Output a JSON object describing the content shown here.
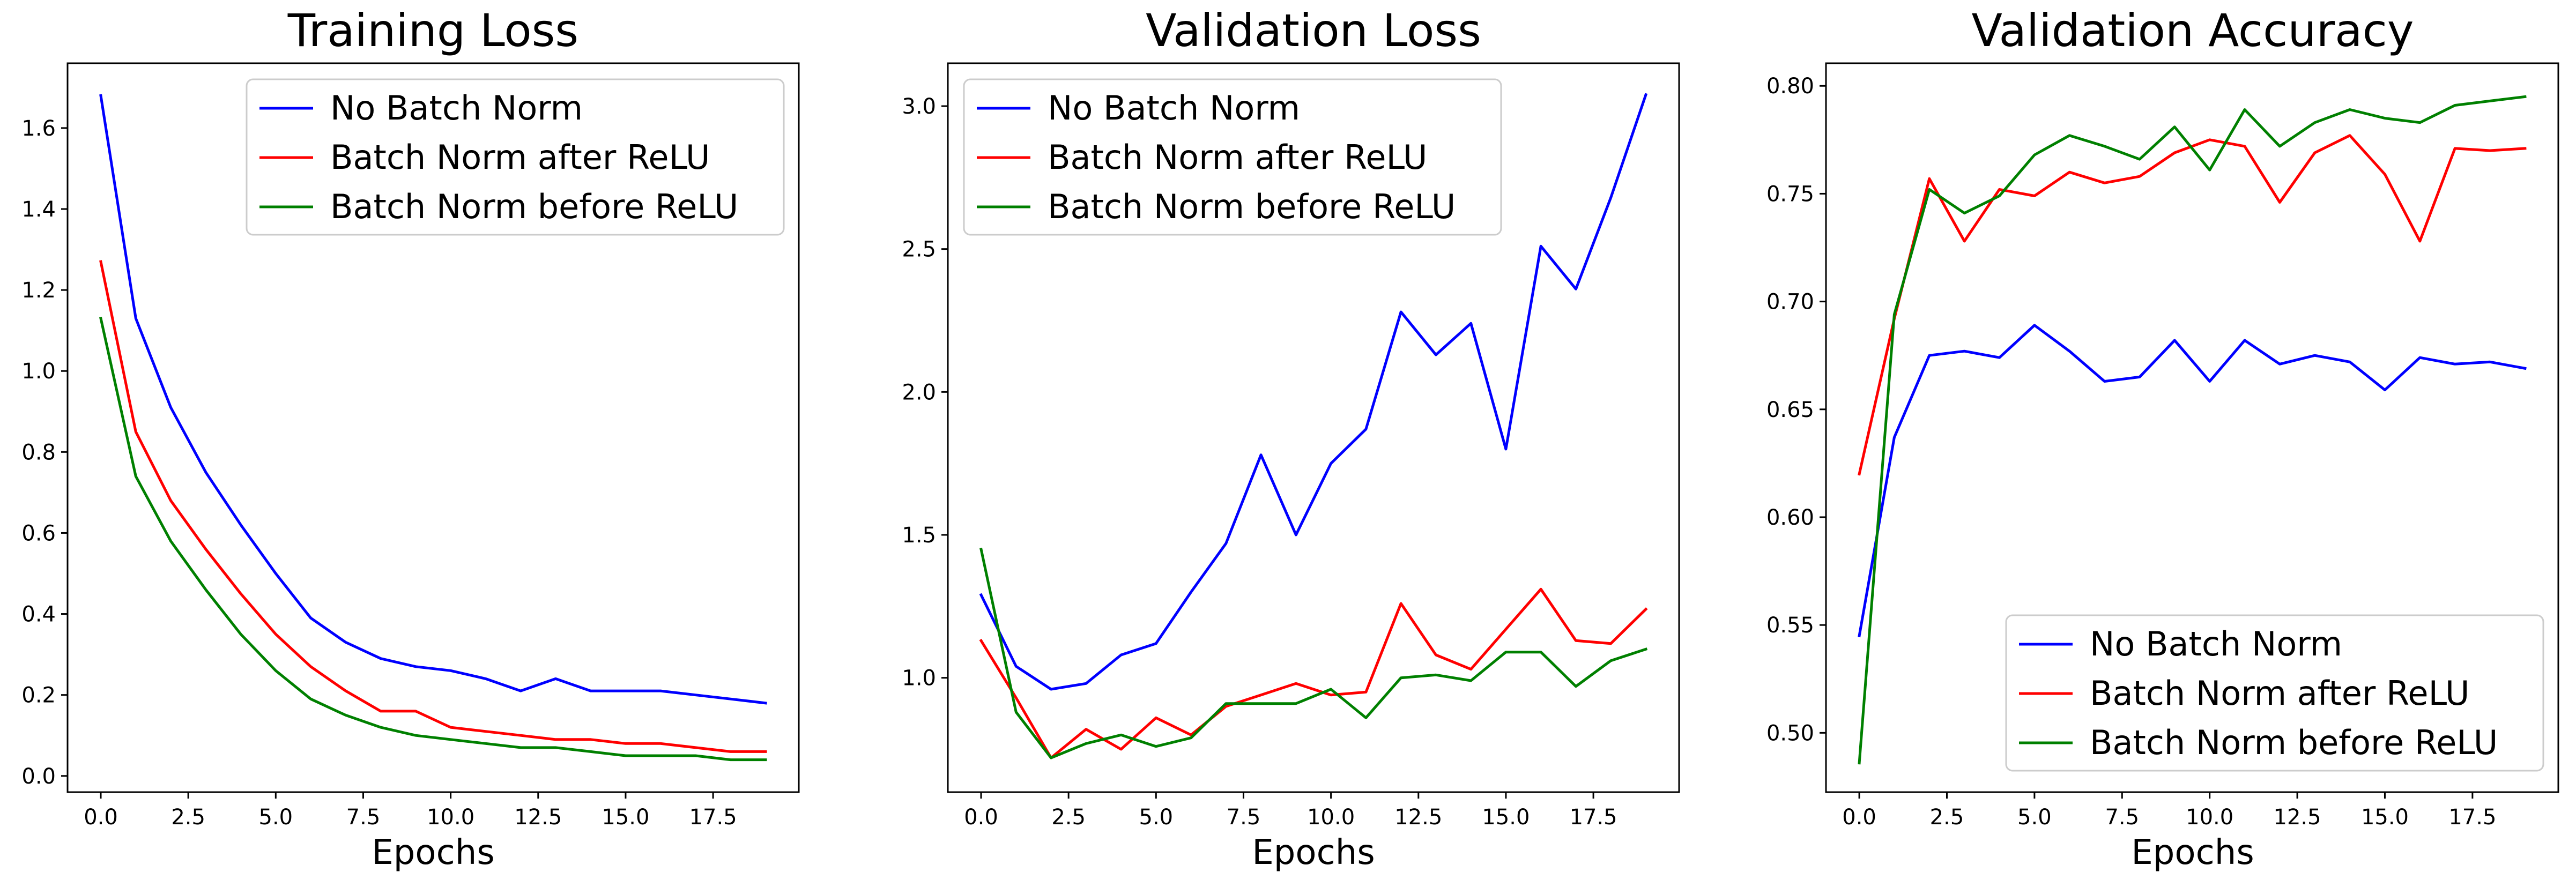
{
  "chart_data": [
    {
      "type": "line",
      "title": "Training Loss",
      "xlabel": "Epochs",
      "ylabel": "",
      "xlim": [
        -0.95,
        19.95
      ],
      "ylim": [
        -0.04,
        1.76
      ],
      "xticks": [
        0.0,
        2.5,
        5.0,
        7.5,
        10.0,
        12.5,
        15.0,
        17.5
      ],
      "xtick_labels": [
        "0.0",
        "2.5",
        "5.0",
        "7.5",
        "10.0",
        "12.5",
        "15.0",
        "17.5"
      ],
      "yticks": [
        0.0,
        0.2,
        0.4,
        0.6,
        0.8,
        1.0,
        1.2,
        1.4,
        1.6
      ],
      "ytick_labels": [
        "0.0",
        "0.2",
        "0.4",
        "0.6",
        "0.8",
        "1.0",
        "1.2",
        "1.4",
        "1.6"
      ],
      "legend_position": "top-right",
      "x": [
        0,
        1,
        2,
        3,
        4,
        5,
        6,
        7,
        8,
        9,
        10,
        11,
        12,
        13,
        14,
        15,
        16,
        17,
        18,
        19
      ],
      "series": [
        {
          "name": "No Batch Norm",
          "color": "#0000ff",
          "values": [
            1.68,
            1.13,
            0.91,
            0.75,
            0.62,
            0.5,
            0.39,
            0.33,
            0.29,
            0.27,
            0.26,
            0.24,
            0.21,
            0.24,
            0.21,
            0.21,
            0.21,
            0.2,
            0.19,
            0.18
          ]
        },
        {
          "name": "Batch Norm after ReLU",
          "color": "#ff0000",
          "values": [
            1.27,
            0.85,
            0.68,
            0.56,
            0.45,
            0.35,
            0.27,
            0.21,
            0.16,
            0.16,
            0.12,
            0.11,
            0.1,
            0.09,
            0.09,
            0.08,
            0.08,
            0.07,
            0.06,
            0.06
          ]
        },
        {
          "name": "Batch Norm before ReLU",
          "color": "#008000",
          "values": [
            1.13,
            0.74,
            0.58,
            0.46,
            0.35,
            0.26,
            0.19,
            0.15,
            0.12,
            0.1,
            0.09,
            0.08,
            0.07,
            0.07,
            0.06,
            0.05,
            0.05,
            0.05,
            0.04,
            0.04
          ]
        }
      ]
    },
    {
      "type": "line",
      "title": "Validation Loss",
      "xlabel": "Epochs",
      "ylabel": "",
      "xlim": [
        -0.95,
        19.95
      ],
      "ylim": [
        0.6,
        3.15
      ],
      "xticks": [
        0.0,
        2.5,
        5.0,
        7.5,
        10.0,
        12.5,
        15.0,
        17.5
      ],
      "xtick_labels": [
        "0.0",
        "2.5",
        "5.0",
        "7.5",
        "10.0",
        "12.5",
        "15.0",
        "17.5"
      ],
      "yticks": [
        1.0,
        1.5,
        2.0,
        2.5,
        3.0
      ],
      "ytick_labels": [
        "1.0",
        "1.5",
        "2.0",
        "2.5",
        "3.0"
      ],
      "legend_position": "top-left",
      "x": [
        0,
        1,
        2,
        3,
        4,
        5,
        6,
        7,
        8,
        9,
        10,
        11,
        12,
        13,
        14,
        15,
        16,
        17,
        18,
        19
      ],
      "series": [
        {
          "name": "No Batch Norm",
          "color": "#0000ff",
          "values": [
            1.29,
            1.04,
            0.96,
            0.98,
            1.08,
            1.12,
            1.3,
            1.47,
            1.78,
            1.5,
            1.75,
            1.87,
            2.28,
            2.13,
            2.24,
            1.8,
            2.51,
            2.36,
            2.68,
            3.04
          ]
        },
        {
          "name": "Batch Norm after ReLU",
          "color": "#ff0000",
          "values": [
            1.13,
            0.93,
            0.72,
            0.82,
            0.75,
            0.86,
            0.8,
            0.9,
            0.94,
            0.98,
            0.94,
            0.95,
            1.26,
            1.08,
            1.03,
            1.17,
            1.31,
            1.13,
            1.12,
            1.24
          ]
        },
        {
          "name": "Batch Norm before ReLU",
          "color": "#008000",
          "values": [
            1.45,
            0.88,
            0.72,
            0.77,
            0.8,
            0.76,
            0.79,
            0.91,
            0.91,
            0.91,
            0.96,
            0.86,
            1.0,
            1.01,
            0.99,
            1.09,
            1.09,
            0.97,
            1.06,
            1.1
          ]
        }
      ]
    },
    {
      "type": "line",
      "title": "Validation Accuracy",
      "xlabel": "Epochs",
      "ylabel": "",
      "xlim": [
        -0.95,
        19.95
      ],
      "ylim": [
        0.4725,
        0.8105
      ],
      "xticks": [
        0.0,
        2.5,
        5.0,
        7.5,
        10.0,
        12.5,
        15.0,
        17.5
      ],
      "xtick_labels": [
        "0.0",
        "2.5",
        "5.0",
        "7.5",
        "10.0",
        "12.5",
        "15.0",
        "17.5"
      ],
      "yticks": [
        0.5,
        0.55,
        0.6,
        0.65,
        0.7,
        0.75,
        0.8
      ],
      "ytick_labels": [
        "0.50",
        "0.55",
        "0.60",
        "0.65",
        "0.70",
        "0.75",
        "0.80"
      ],
      "legend_position": "bottom-right",
      "x": [
        0,
        1,
        2,
        3,
        4,
        5,
        6,
        7,
        8,
        9,
        10,
        11,
        12,
        13,
        14,
        15,
        16,
        17,
        18,
        19
      ],
      "series": [
        {
          "name": "No Batch Norm",
          "color": "#0000ff",
          "values": [
            0.545,
            0.637,
            0.675,
            0.677,
            0.674,
            0.689,
            0.677,
            0.663,
            0.665,
            0.682,
            0.663,
            0.682,
            0.671,
            0.675,
            0.672,
            0.659,
            0.674,
            0.671,
            0.672,
            0.669
          ]
        },
        {
          "name": "Batch Norm after ReLU",
          "color": "#ff0000",
          "values": [
            0.62,
            0.692,
            0.757,
            0.728,
            0.752,
            0.749,
            0.76,
            0.755,
            0.758,
            0.769,
            0.775,
            0.772,
            0.746,
            0.769,
            0.777,
            0.759,
            0.728,
            0.771,
            0.77,
            0.771
          ]
        },
        {
          "name": "Batch Norm before ReLU",
          "color": "#008000",
          "values": [
            0.486,
            0.694,
            0.752,
            0.741,
            0.749,
            0.768,
            0.777,
            0.772,
            0.766,
            0.781,
            0.761,
            0.789,
            0.772,
            0.783,
            0.789,
            0.785,
            0.783,
            0.791,
            0.793,
            0.795
          ]
        }
      ]
    }
  ]
}
